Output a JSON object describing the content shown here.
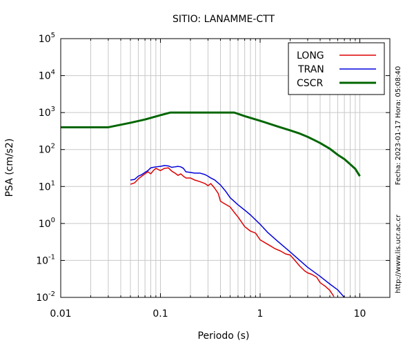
{
  "chart_data": {
    "type": "line",
    "title": "SITIO: LANAMME-CTT",
    "xlabel": "Periodo (s)",
    "ylabel": "PSA (cm/s2)",
    "x_scale": "log",
    "y_scale": "log",
    "xlim": [
      0.01,
      20
    ],
    "ylim": [
      0.01,
      100000
    ],
    "grid": true,
    "legend_position": "top-right",
    "x_ticks": [
      {
        "value": 0.01,
        "label": "0.01"
      },
      {
        "value": 0.1,
        "label": "0.1"
      },
      {
        "value": 1,
        "label": "1"
      },
      {
        "value": 10,
        "label": "10"
      }
    ],
    "y_ticks": [
      {
        "value": 0.01,
        "base": "10",
        "exp": "-2"
      },
      {
        "value": 0.1,
        "base": "10",
        "exp": "-1"
      },
      {
        "value": 1,
        "base": "10",
        "exp": "0"
      },
      {
        "value": 10,
        "base": "10",
        "exp": "1"
      },
      {
        "value": 100,
        "base": "10",
        "exp": "2"
      },
      {
        "value": 1000,
        "base": "10",
        "exp": "3"
      },
      {
        "value": 10000,
        "base": "10",
        "exp": "4"
      },
      {
        "value": 100000,
        "base": "10",
        "exp": "5"
      }
    ],
    "series": [
      {
        "name": "LONG",
        "color": "#dd0000",
        "width": 1.5,
        "points": [
          [
            0.05,
            11.5
          ],
          [
            0.055,
            12.5
          ],
          [
            0.06,
            16
          ],
          [
            0.065,
            19
          ],
          [
            0.07,
            22
          ],
          [
            0.075,
            25
          ],
          [
            0.08,
            22
          ],
          [
            0.085,
            27
          ],
          [
            0.09,
            31
          ],
          [
            0.1,
            27
          ],
          [
            0.11,
            31
          ],
          [
            0.12,
            32
          ],
          [
            0.13,
            26
          ],
          [
            0.14,
            23
          ],
          [
            0.15,
            20
          ],
          [
            0.16,
            22
          ],
          [
            0.17,
            19
          ],
          [
            0.18,
            17
          ],
          [
            0.2,
            17
          ],
          [
            0.22,
            15
          ],
          [
            0.25,
            13.5
          ],
          [
            0.28,
            12
          ],
          [
            0.3,
            10.5
          ],
          [
            0.32,
            12
          ],
          [
            0.35,
            9
          ],
          [
            0.38,
            6.5
          ],
          [
            0.4,
            4
          ],
          [
            0.45,
            3.3
          ],
          [
            0.5,
            2.8
          ],
          [
            0.55,
            2
          ],
          [
            0.6,
            1.5
          ],
          [
            0.7,
            0.82
          ],
          [
            0.8,
            0.62
          ],
          [
            0.9,
            0.55
          ],
          [
            1,
            0.36
          ],
          [
            1.2,
            0.27
          ],
          [
            1.4,
            0.21
          ],
          [
            1.6,
            0.18
          ],
          [
            1.8,
            0.15
          ],
          [
            2,
            0.14
          ],
          [
            2.2,
            0.105
          ],
          [
            2.5,
            0.07
          ],
          [
            2.8,
            0.052
          ],
          [
            3,
            0.046
          ],
          [
            3.3,
            0.042
          ],
          [
            3.7,
            0.035
          ],
          [
            4,
            0.025
          ],
          [
            4.5,
            0.02
          ],
          [
            5,
            0.0155
          ],
          [
            5.5,
            0.0105
          ]
        ]
      },
      {
        "name": "TRAN",
        "color": "#0000dd",
        "width": 1.5,
        "points": [
          [
            0.05,
            15
          ],
          [
            0.055,
            15.5
          ],
          [
            0.06,
            19
          ],
          [
            0.065,
            21
          ],
          [
            0.07,
            24
          ],
          [
            0.075,
            27
          ],
          [
            0.08,
            32
          ],
          [
            0.085,
            33
          ],
          [
            0.09,
            34
          ],
          [
            0.1,
            35
          ],
          [
            0.11,
            37
          ],
          [
            0.12,
            36
          ],
          [
            0.13,
            33
          ],
          [
            0.14,
            34
          ],
          [
            0.15,
            35
          ],
          [
            0.16,
            34
          ],
          [
            0.17,
            31
          ],
          [
            0.18,
            25
          ],
          [
            0.2,
            24
          ],
          [
            0.22,
            23
          ],
          [
            0.25,
            23
          ],
          [
            0.28,
            21
          ],
          [
            0.3,
            19
          ],
          [
            0.32,
            17
          ],
          [
            0.35,
            15
          ],
          [
            0.4,
            11
          ],
          [
            0.45,
            7.5
          ],
          [
            0.5,
            5
          ],
          [
            0.6,
            3.2
          ],
          [
            0.7,
            2.3
          ],
          [
            0.8,
            1.7
          ],
          [
            1,
            0.95
          ],
          [
            1.2,
            0.56
          ],
          [
            1.5,
            0.33
          ],
          [
            2,
            0.17
          ],
          [
            2.5,
            0.1
          ],
          [
            3,
            0.065
          ],
          [
            4,
            0.037
          ],
          [
            5,
            0.023
          ],
          [
            6,
            0.016
          ],
          [
            7,
            0.01
          ]
        ]
      },
      {
        "name": "CSCR",
        "color": "#006600",
        "width": 3,
        "points": [
          [
            0.01,
            400
          ],
          [
            0.03,
            400
          ],
          [
            0.05,
            530
          ],
          [
            0.07,
            650
          ],
          [
            0.1,
            850
          ],
          [
            0.125,
            1000
          ],
          [
            0.2,
            1000
          ],
          [
            0.3,
            1000
          ],
          [
            0.55,
            1000
          ],
          [
            0.7,
            800
          ],
          [
            1,
            600
          ],
          [
            1.5,
            420
          ],
          [
            2,
            330
          ],
          [
            2.5,
            270
          ],
          [
            3,
            220
          ],
          [
            3.5,
            180
          ],
          [
            4,
            150
          ],
          [
            5,
            105
          ],
          [
            6,
            72
          ],
          [
            7,
            55
          ],
          [
            8,
            40
          ],
          [
            9,
            30
          ],
          [
            10,
            19
          ]
        ]
      }
    ]
  },
  "side_text": {
    "fecha": "Fecha: 2023-01-17  Hora: 05:08:40",
    "url": "http://www.lis.ucr.ac.cr"
  }
}
